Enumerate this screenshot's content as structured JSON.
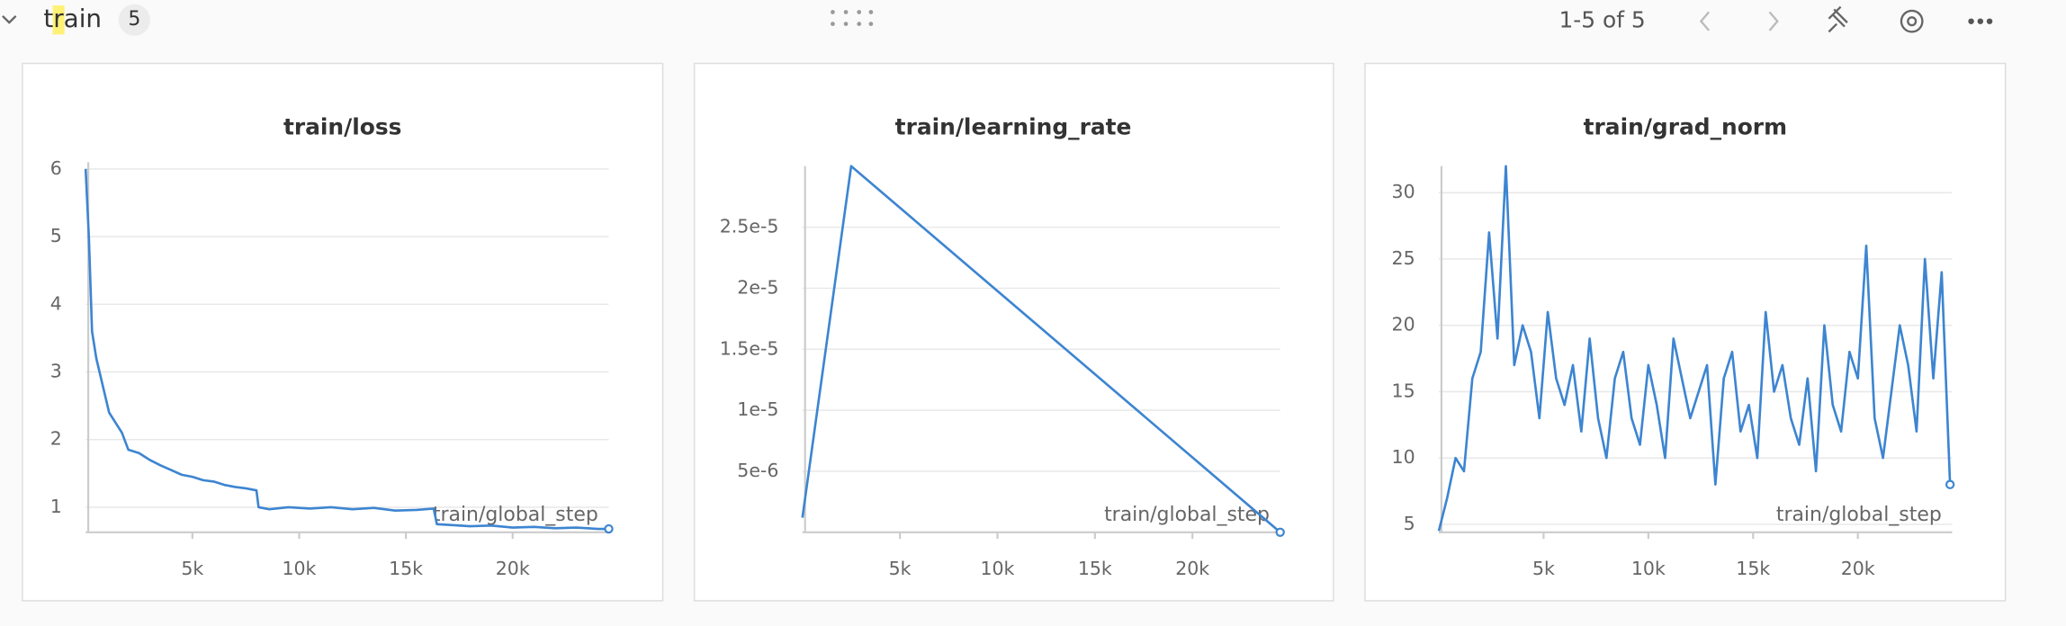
{
  "header": {
    "section_title": "train",
    "count": "5",
    "pagination": "1-5 of 5"
  },
  "chart_data": [
    {
      "type": "line",
      "title": "train/loss",
      "x_label": "train/global_step",
      "color": "#3d85d1",
      "grid": true,
      "x": [
        0,
        150,
        300,
        500,
        800,
        1100,
        1400,
        1700,
        2000,
        2500,
        3000,
        3500,
        4000,
        4500,
        5000,
        5500,
        6000,
        6500,
        7000,
        7500,
        8000,
        8100,
        8600,
        9500,
        10500,
        11500,
        12500,
        13500,
        14500,
        15500,
        16300,
        16450,
        17000,
        18000,
        19000,
        20000,
        21000,
        22000,
        23000,
        24000,
        24500
      ],
      "values": [
        6.0,
        5.0,
        3.6,
        3.2,
        2.8,
        2.4,
        2.25,
        2.1,
        1.85,
        1.8,
        1.7,
        1.62,
        1.55,
        1.48,
        1.45,
        1.4,
        1.38,
        1.33,
        1.3,
        1.28,
        1.25,
        1.0,
        0.97,
        1.0,
        0.98,
        1.0,
        0.97,
        0.99,
        0.95,
        0.96,
        0.98,
        0.75,
        0.74,
        0.72,
        0.73,
        0.7,
        0.71,
        0.69,
        0.7,
        0.68,
        0.68
      ],
      "xlim": [
        0,
        24500
      ],
      "ylim": [
        0.63,
        6.1
      ],
      "xticks": [
        {
          "value": 5000,
          "label": "5k"
        },
        {
          "value": 10000,
          "label": "10k"
        },
        {
          "value": 15000,
          "label": "15k"
        },
        {
          "value": 20000,
          "label": "20k"
        }
      ],
      "yticks": [
        1,
        2,
        3,
        4,
        5,
        6
      ]
    },
    {
      "type": "line",
      "title": "train/learning_rate",
      "x_label": "train/global_step",
      "color": "#3d85d1",
      "grid": true,
      "x": [
        0,
        2500,
        24500
      ],
      "values": [
        1.2e-06,
        3e-05,
        0
      ],
      "xlim": [
        0,
        24500
      ],
      "ylim": [
        0,
        3e-05
      ],
      "xticks": [
        {
          "value": 5000,
          "label": "5k"
        },
        {
          "value": 10000,
          "label": "10k"
        },
        {
          "value": 15000,
          "label": "15k"
        },
        {
          "value": 20000,
          "label": "20k"
        }
      ],
      "yticks": [
        {
          "value": 5e-06,
          "label": "5e-6"
        },
        {
          "value": 1e-05,
          "label": "1e-5"
        },
        {
          "value": 1.5e-05,
          "label": "1.5e-5"
        },
        {
          "value": 2e-05,
          "label": "2e-5"
        },
        {
          "value": 2.5e-05,
          "label": "2.5e-5"
        }
      ]
    },
    {
      "type": "line",
      "title": "train/grad_norm",
      "x_label": "train/global_step",
      "color": "#3d85d1",
      "grid": true,
      "x": [
        0,
        400,
        800,
        1200,
        1600,
        2000,
        2400,
        2800,
        3200,
        3600,
        4000,
        4400,
        4800,
        5200,
        5600,
        6000,
        6400,
        6800,
        7200,
        7600,
        8000,
        8400,
        8800,
        9200,
        9600,
        10000,
        10400,
        10800,
        11200,
        11600,
        12000,
        12400,
        12800,
        13200,
        13600,
        14000,
        14400,
        14800,
        15200,
        15600,
        16000,
        16400,
        16800,
        17200,
        17600,
        18000,
        18400,
        18800,
        19200,
        19600,
        20000,
        20400,
        20800,
        21200,
        21600,
        22000,
        22400,
        22800,
        23200,
        23600,
        24000,
        24400
      ],
      "values": [
        4.5,
        7,
        10,
        9,
        16,
        18,
        27,
        19,
        32,
        17,
        20,
        18,
        13,
        21,
        16,
        14,
        17,
        12,
        19,
        13,
        10,
        16,
        18,
        13,
        11,
        17,
        14,
        10,
        19,
        16,
        13,
        15,
        17,
        8,
        16,
        18,
        12,
        14,
        10,
        21,
        15,
        17,
        13,
        11,
        16,
        9,
        20,
        14,
        12,
        18,
        16,
        26,
        13,
        10,
        15,
        20,
        17,
        12,
        25,
        16,
        24,
        8
      ],
      "xlim": [
        0,
        24500
      ],
      "ylim": [
        4.4,
        32
      ],
      "xticks": [
        {
          "value": 5000,
          "label": "5k"
        },
        {
          "value": 10000,
          "label": "10k"
        },
        {
          "value": 15000,
          "label": "15k"
        },
        {
          "value": 20000,
          "label": "20k"
        }
      ],
      "yticks": [
        5,
        10,
        15,
        20,
        25,
        30
      ]
    }
  ]
}
